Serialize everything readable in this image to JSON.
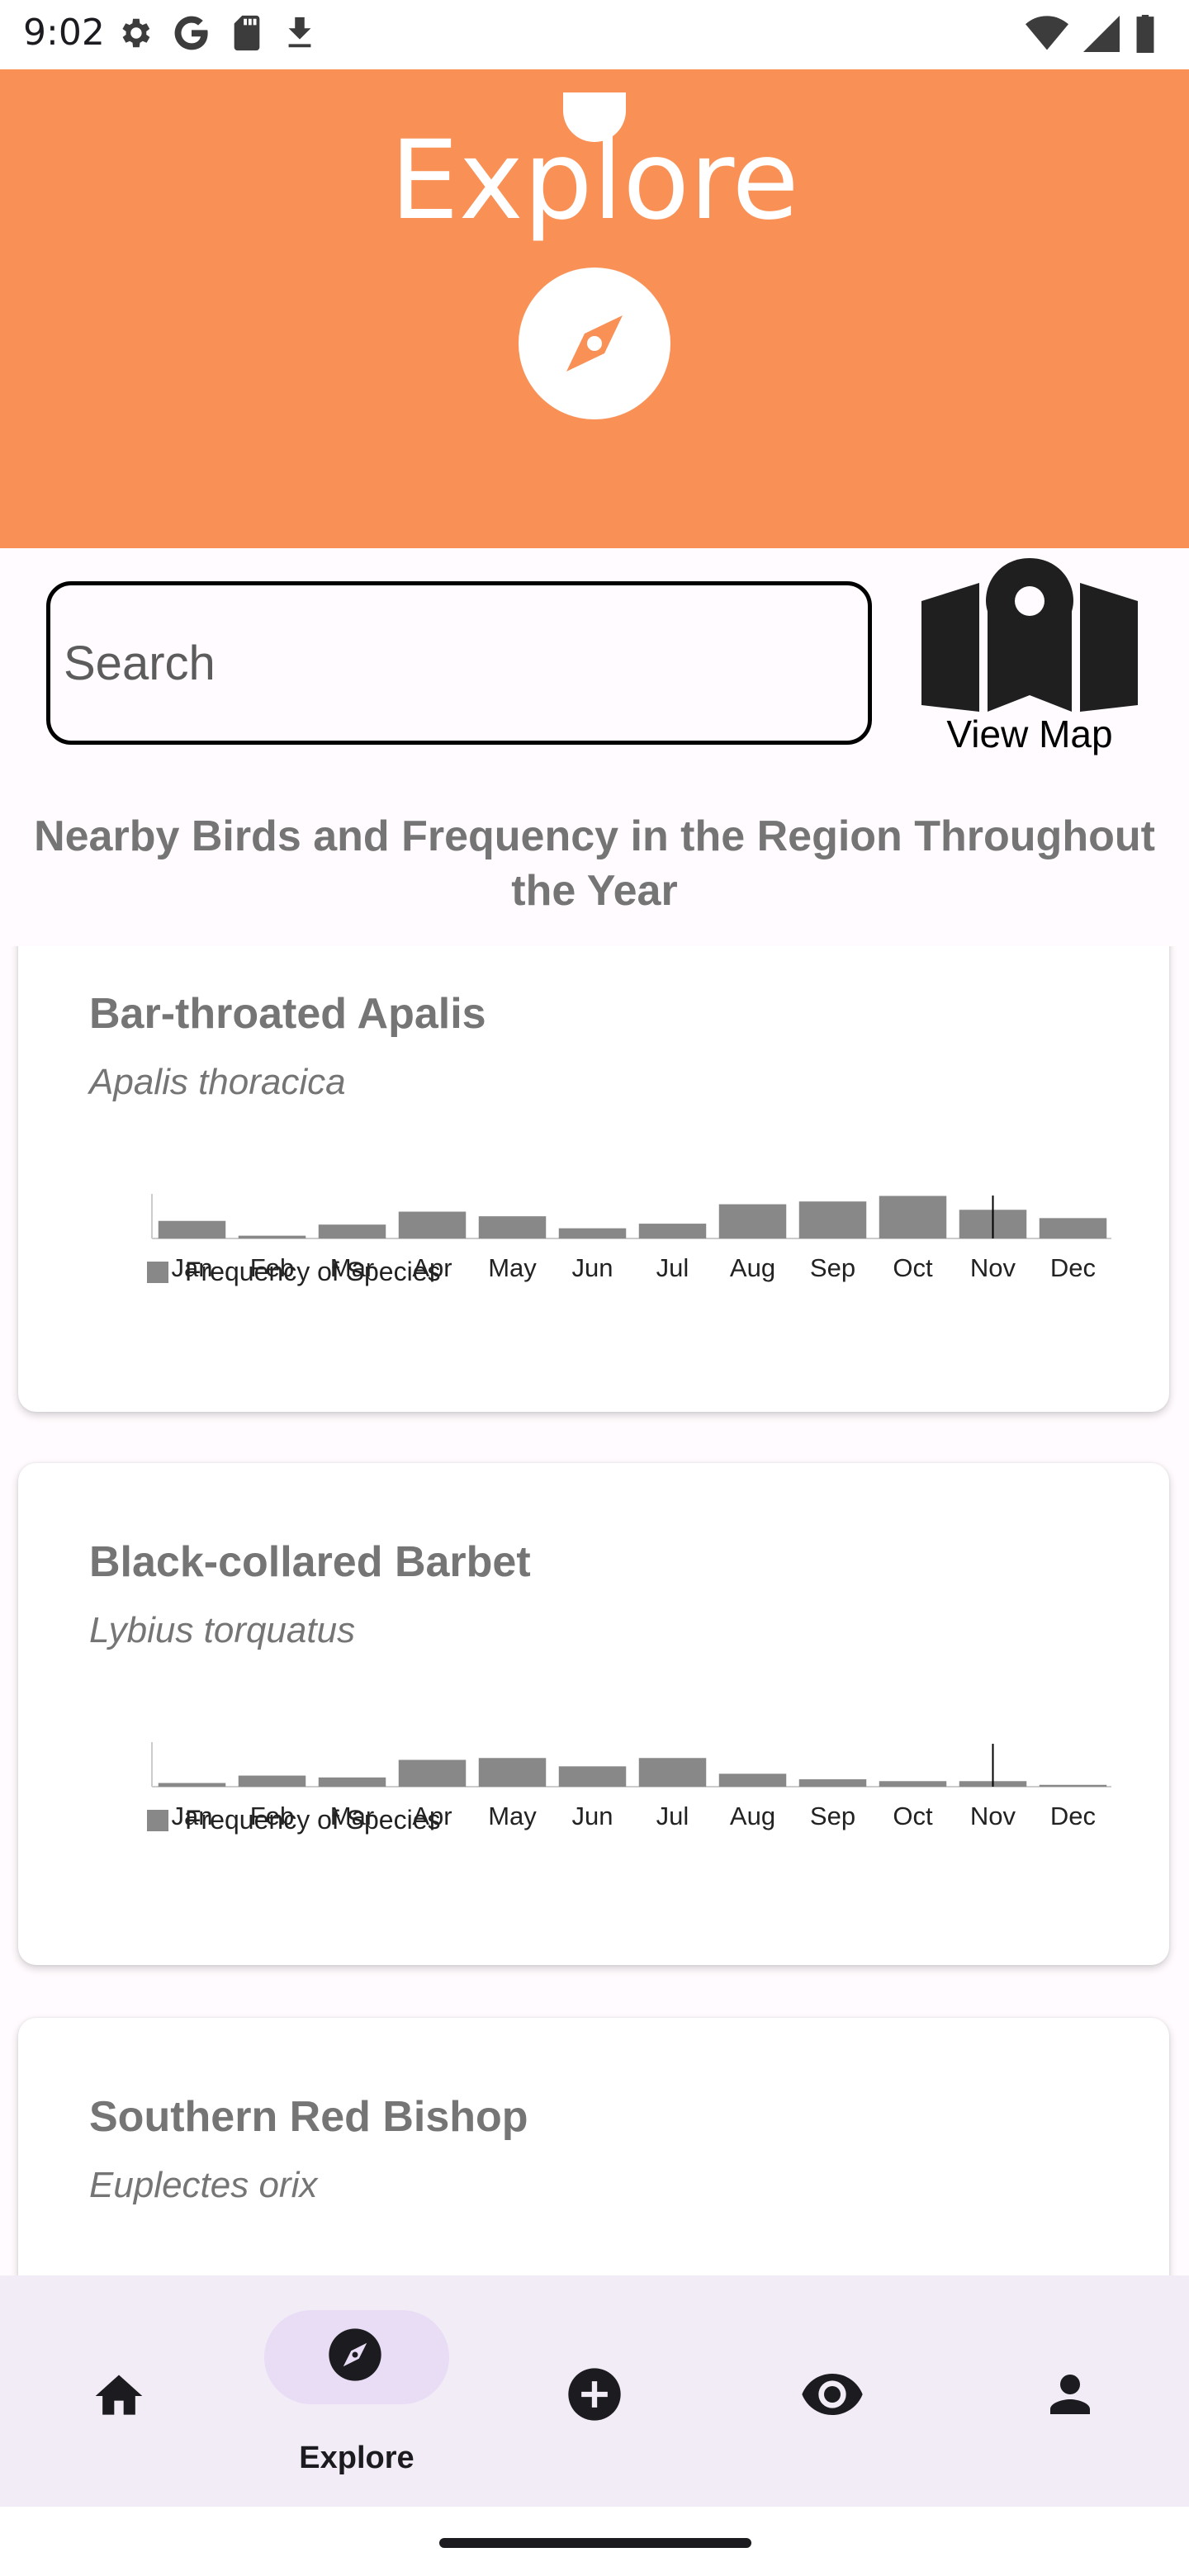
{
  "status_bar": {
    "time": "9:02",
    "left_icons": [
      "gear-icon",
      "google-icon",
      "sd-card-icon",
      "download-icon"
    ],
    "right_icons": [
      "wifi-icon",
      "signal-icon",
      "battery-icon"
    ]
  },
  "header": {
    "title": "Explore",
    "icon": "compass-icon",
    "background_color": "#f99156"
  },
  "search": {
    "placeholder": "Search",
    "value": ""
  },
  "view_map": {
    "label": "View Map",
    "icon": "map-pin-icon"
  },
  "section_heading": "Nearby Birds and Frequency in the Region Throughout the Year",
  "birds": [
    {
      "name": "Bar-throated Apalis",
      "scientific_name": "Apalis thoracica",
      "chart_data": {
        "type": "bar",
        "categories": [
          "Jan",
          "Feb",
          "Mar",
          "Apr",
          "May",
          "Jun",
          "Jul",
          "Aug",
          "Sep",
          "Oct",
          "Nov",
          "Dec"
        ],
        "series": [
          {
            "name": "Frequency of Species",
            "values": [
              0.38,
              0.06,
              0.3,
              0.58,
              0.48,
              0.22,
              0.32,
              0.74,
              0.8,
              0.92,
              0.62,
              0.44
            ]
          }
        ],
        "ylim": [
          0,
          1
        ],
        "current_month_marker": "Nov",
        "legend_position": "bottom-left",
        "bar_color": "#888888"
      }
    },
    {
      "name": "Black-collared Barbet",
      "scientific_name": "Lybius torquatus",
      "chart_data": {
        "type": "bar",
        "categories": [
          "Jan",
          "Feb",
          "Mar",
          "Apr",
          "May",
          "Jun",
          "Jul",
          "Aug",
          "Sep",
          "Oct",
          "Nov",
          "Dec"
        ],
        "series": [
          {
            "name": "Frequency of Species",
            "values": [
              0.08,
              0.24,
              0.2,
              0.58,
              0.62,
              0.44,
              0.62,
              0.28,
              0.16,
              0.12,
              0.12,
              0.04
            ]
          }
        ],
        "ylim": [
          0,
          1
        ],
        "current_month_marker": "Nov",
        "legend_position": "bottom-left",
        "bar_color": "#888888"
      }
    },
    {
      "name": "Southern Red Bishop",
      "scientific_name": "Euplectes orix"
    }
  ],
  "bottom_nav": {
    "items": [
      {
        "icon": "home-icon",
        "label": ""
      },
      {
        "icon": "compass-icon",
        "label": "Explore",
        "active": true
      },
      {
        "icon": "add-circle-icon",
        "label": ""
      },
      {
        "icon": "eye-icon",
        "label": ""
      },
      {
        "icon": "person-icon",
        "label": ""
      }
    ]
  }
}
